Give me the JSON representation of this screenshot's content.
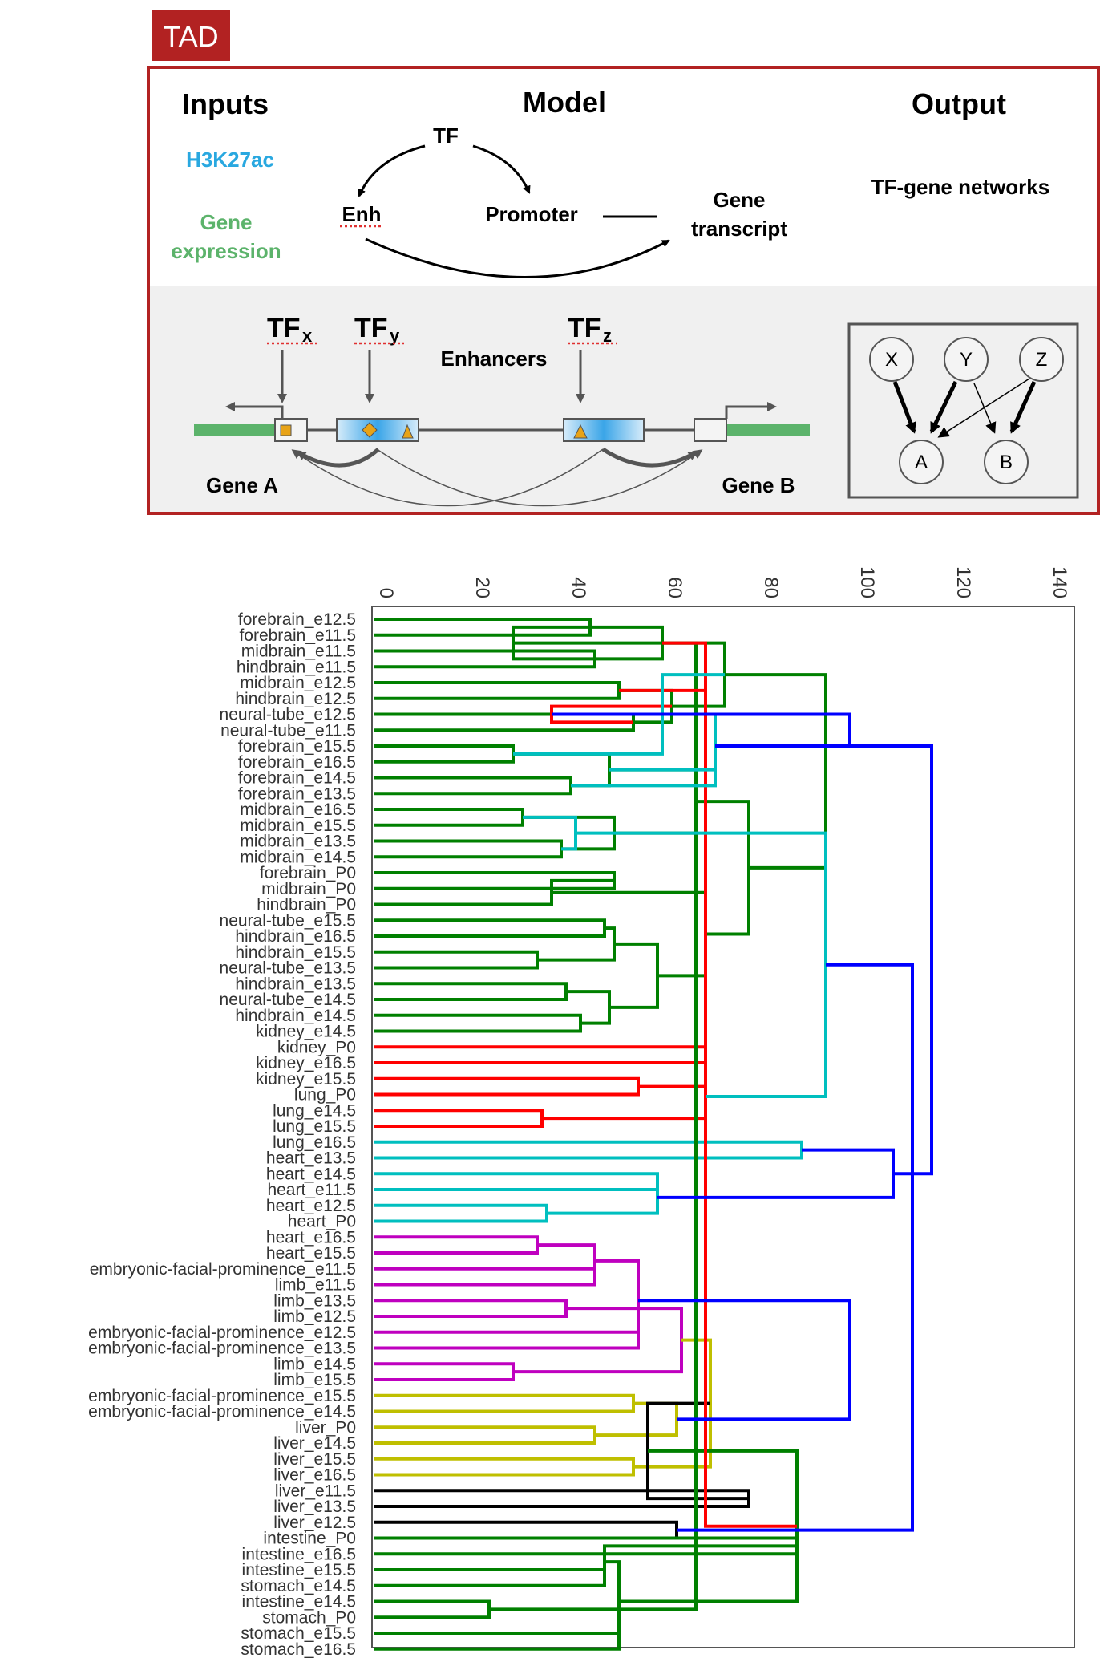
{
  "panel": {
    "tag": "TAD",
    "inputs_title": "Inputs",
    "model_title": "Model",
    "output_title": "Output",
    "input_h3k27ac": "H3K27ac",
    "input_gene": "Gene",
    "input_expression": "expression",
    "model_tf": "TF",
    "model_enh": "Enh",
    "model_promoter": "Promoter",
    "model_gene": "Gene",
    "model_transcript": "transcript",
    "output_networks": "TF-gene networks",
    "tf_x": "TF",
    "tf_x_sub": "x",
    "tf_y": "TF",
    "tf_y_sub": "y",
    "tf_z": "TF",
    "tf_z_sub": "z",
    "enhancers": "Enhancers",
    "gene_a": "Gene A",
    "gene_b": "Gene B",
    "net_nodes": [
      "X",
      "Y",
      "Z",
      "A",
      "B"
    ]
  },
  "colors": {
    "tag_bg": "#b22222",
    "frame": "#b22222",
    "h3k27ac": "#29a8e0",
    "gene_expr": "#5cb36b",
    "green": "#008000",
    "red": "#ff0000",
    "cyan": "#00bfbf",
    "magenta": "#bf00bf",
    "olive": "#bfbf00",
    "black": "#000000",
    "blue": "#0000ff"
  },
  "chart_data": {
    "type": "dendrogram",
    "axis_ticks": [
      0,
      20,
      40,
      60,
      80,
      100,
      120,
      140
    ],
    "xlim": [
      0,
      146
    ],
    "leaves": [
      "forebrain_e12.5",
      "forebrain_e11.5",
      "midbrain_e11.5",
      "hindbrain_e11.5",
      "midbrain_e12.5",
      "hindbrain_e12.5",
      "neural-tube_e12.5",
      "neural-tube_e11.5",
      "forebrain_e15.5",
      "forebrain_e16.5",
      "forebrain_e14.5",
      "forebrain_e13.5",
      "midbrain_e16.5",
      "midbrain_e15.5",
      "midbrain_e13.5",
      "midbrain_e14.5",
      "forebrain_P0",
      "midbrain_P0",
      "hindbrain_P0",
      "neural-tube_e15.5",
      "hindbrain_e16.5",
      "hindbrain_e15.5",
      "neural-tube_e13.5",
      "hindbrain_e13.5",
      "neural-tube_e14.5",
      "hindbrain_e14.5",
      "kidney_e14.5",
      "kidney_P0",
      "kidney_e16.5",
      "kidney_e15.5",
      "lung_P0",
      "lung_e14.5",
      "lung_e15.5",
      "lung_e16.5",
      "heart_e13.5",
      "heart_e14.5",
      "heart_e11.5",
      "heart_e12.5",
      "heart_P0",
      "heart_e16.5",
      "heart_e15.5",
      "embryonic-facial-prominence_e11.5",
      "limb_e11.5",
      "limb_e13.5",
      "limb_e12.5",
      "embryonic-facial-prominence_e12.5",
      "embryonic-facial-prominence_e13.5",
      "limb_e14.5",
      "limb_e15.5",
      "embryonic-facial-prominence_e15.5",
      "embryonic-facial-prominence_e14.5",
      "liver_P0",
      "liver_e14.5",
      "liver_e15.5",
      "liver_e16.5",
      "liver_e11.5",
      "liver_e13.5",
      "liver_e12.5",
      "intestine_P0",
      "intestine_e16.5",
      "intestine_e15.5",
      "stomach_e14.5",
      "intestine_e14.5",
      "stomach_P0",
      "stomach_e15.5",
      "stomach_e16.5"
    ],
    "merges": [
      [
        0,
        1,
        45,
        "green"
      ],
      [
        2,
        3,
        46,
        "green"
      ],
      [
        66,
        67,
        60,
        "green"
      ],
      [
        4,
        5,
        51,
        "green"
      ],
      [
        6,
        7,
        54,
        "green"
      ],
      [
        69,
        70,
        62,
        "green"
      ],
      [
        68,
        71,
        73,
        "green"
      ],
      [
        8,
        9,
        29,
        "green"
      ],
      [
        10,
        11,
        41,
        "green"
      ],
      [
        73,
        74,
        49,
        "green"
      ],
      [
        12,
        13,
        31,
        "green"
      ],
      [
        14,
        15,
        39,
        "green"
      ],
      [
        76,
        77,
        50,
        "green"
      ],
      [
        75,
        78,
        67,
        "green"
      ],
      [
        16,
        17,
        50,
        "green"
      ],
      [
        18,
        80,
        37,
        "green"
      ],
      [
        19,
        20,
        48,
        "green"
      ],
      [
        21,
        22,
        34,
        "green"
      ],
      [
        82,
        83,
        50,
        "green"
      ],
      [
        23,
        24,
        40,
        "green"
      ],
      [
        25,
        26,
        43,
        "green"
      ],
      [
        85,
        86,
        49,
        "green"
      ],
      [
        84,
        87,
        59,
        "green"
      ],
      [
        81,
        88,
        69,
        "green"
      ],
      [
        79,
        89,
        78,
        "green"
      ],
      [
        72,
        90,
        94,
        "green"
      ],
      [
        27,
        28,
        69,
        "red"
      ],
      [
        29,
        30,
        55,
        "red"
      ],
      [
        31,
        32,
        35,
        "red"
      ],
      [
        93,
        94,
        69,
        "red"
      ],
      [
        33,
        34,
        89,
        "cyan"
      ],
      [
        35,
        36,
        59,
        "cyan"
      ],
      [
        37,
        38,
        36,
        "cyan"
      ],
      [
        97,
        98,
        59,
        "cyan"
      ],
      [
        39,
        40,
        34,
        "magenta"
      ],
      [
        41,
        42,
        46,
        "magenta"
      ],
      [
        43,
        44,
        40,
        "magenta"
      ],
      [
        100,
        101,
        46,
        "magenta"
      ],
      [
        45,
        46,
        55,
        "magenta"
      ],
      [
        47,
        48,
        29,
        "magenta"
      ],
      [
        103,
        104,
        55,
        "magenta"
      ],
      [
        102,
        105,
        64,
        "magenta"
      ],
      [
        49,
        50,
        54,
        "olive"
      ],
      [
        51,
        52,
        46,
        "olive"
      ],
      [
        53,
        54,
        54,
        "olive"
      ],
      [
        108,
        109,
        63,
        "olive"
      ],
      [
        107,
        110,
        70,
        "olive"
      ],
      [
        55,
        56,
        78,
        "black"
      ],
      [
        57,
        58,
        63,
        "black"
      ],
      [
        112,
        113,
        57,
        "black"
      ],
      [
        58,
        59,
        88,
        "green"
      ],
      [
        60,
        61,
        48,
        "green"
      ],
      [
        62,
        63,
        24,
        "green"
      ],
      [
        116,
        117,
        48,
        "green"
      ],
      [
        64,
        65,
        51,
        "green"
      ],
      [
        66,
        67,
        29,
        "green"
      ],
      [
        119,
        120,
        51,
        "green"
      ],
      [
        118,
        121,
        67,
        "green"
      ],
      [
        115,
        122,
        88,
        "green"
      ],
      [
        68,
        69,
        69,
        "red"
      ],
      [
        70,
        71,
        37,
        "red"
      ],
      [
        124,
        125,
        69,
        "red"
      ],
      [
        72,
        73,
        60,
        "cyan"
      ],
      [
        74,
        75,
        71,
        "cyan"
      ],
      [
        76,
        77,
        42,
        "cyan"
      ],
      [
        128,
        129,
        71,
        "cyan"
      ],
      [
        127,
        130,
        94,
        "cyan"
      ],
      [
        99,
        96,
        108,
        "blue"
      ],
      [
        106,
        111,
        99,
        "blue"
      ],
      [
        132,
        114,
        112,
        "blue"
      ],
      [
        131,
        133,
        116,
        "blue"
      ],
      [
        126,
        131,
        99,
        "blue"
      ]
    ]
  }
}
